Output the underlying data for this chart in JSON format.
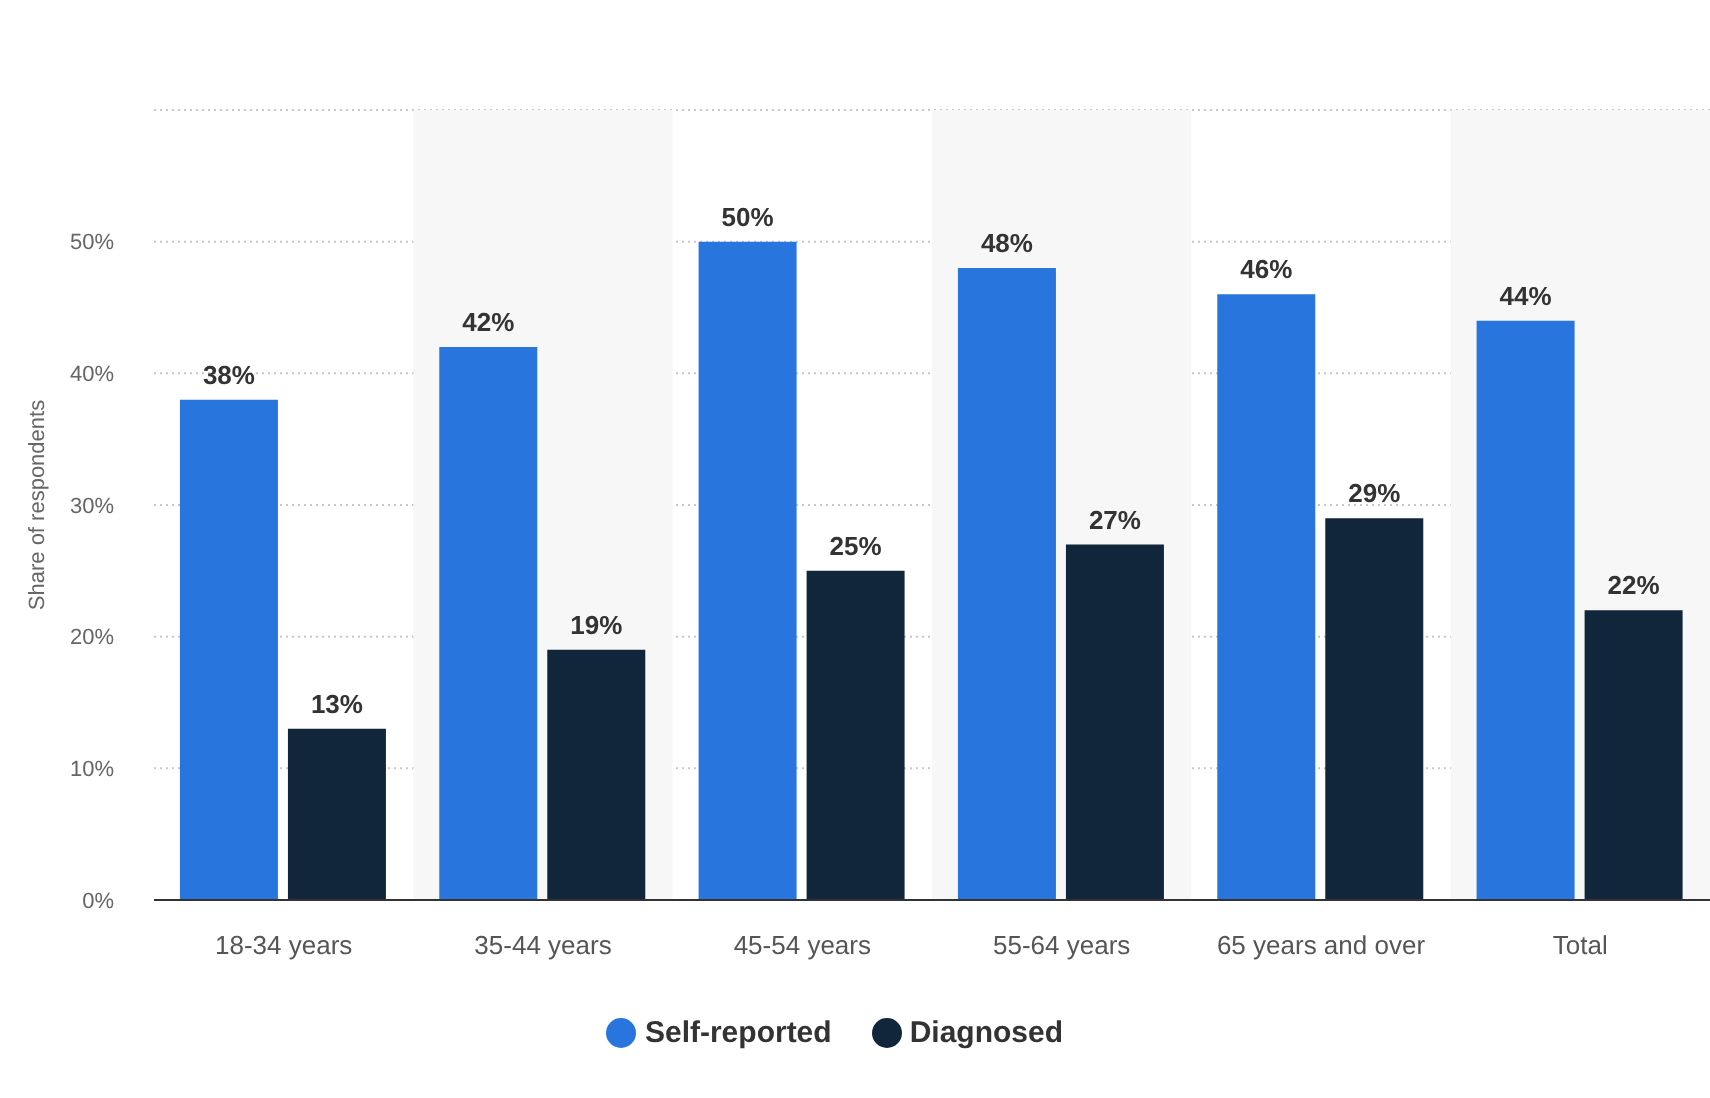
{
  "chart_data": {
    "type": "bar",
    "ylabel": "Share of respondents",
    "categories": [
      "18-34 years",
      "35-44 years",
      "45-54 years",
      "55-64 years",
      "65 years and over",
      "Total"
    ],
    "series": [
      {
        "name": "Self-reported",
        "color": "#2876dd",
        "values": [
          38,
          42,
          50,
          48,
          46,
          44
        ],
        "value_labels": [
          "38%",
          "42%",
          "50%",
          "48%",
          "46%",
          "44%"
        ]
      },
      {
        "name": "Diagnosed",
        "color": "#12263b",
        "values": [
          13,
          19,
          25,
          27,
          29,
          22
        ],
        "value_labels": [
          "13%",
          "19%",
          "25%",
          "27%",
          "29%",
          "22%"
        ]
      }
    ],
    "ylim": [
      0,
      60
    ],
    "yticks": [
      {
        "value": 0,
        "label": "0%"
      },
      {
        "value": 10,
        "label": "10%"
      },
      {
        "value": 20,
        "label": "20%"
      },
      {
        "value": 30,
        "label": "30%"
      },
      {
        "value": 40,
        "label": "40%"
      },
      {
        "value": 50,
        "label": "50%"
      },
      {
        "value": 60,
        "label": null
      }
    ],
    "bands": [
      {
        "axis": "x",
        "from": "35-44 years",
        "to": "35-44 years",
        "color": "#f7f7f7"
      },
      {
        "axis": "x",
        "from": "55-64 years",
        "to": "55-64 years",
        "color": "#f7f7f7"
      },
      {
        "axis": "x",
        "from": "Total",
        "to": "Total",
        "color": "#f7f7f7"
      }
    ],
    "grid": "y",
    "legend": "bottom"
  }
}
